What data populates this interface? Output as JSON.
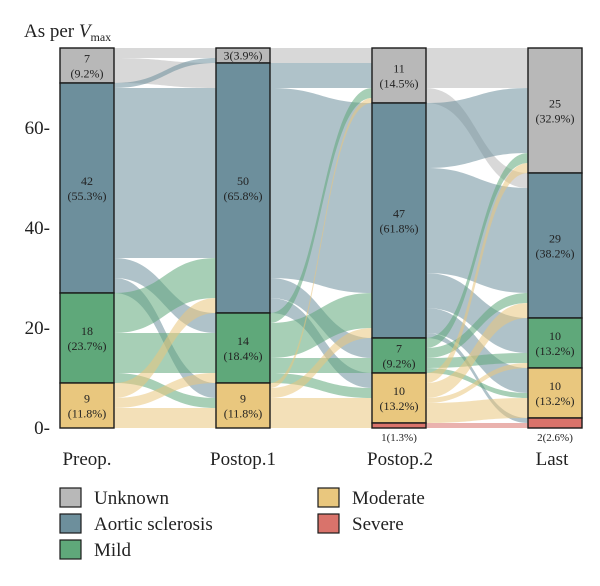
{
  "chart_data": {
    "type": "sankey",
    "ylabel_prefix": "As per ",
    "ylabel_v": "V",
    "ylabel_sub": "max",
    "y_ticks": [
      "0-",
      "20-",
      "40-",
      "60-"
    ],
    "y_tick_values": [
      0,
      20,
      40,
      60
    ],
    "total": 76,
    "categories": [
      "Preop.",
      "Postop.1",
      "Postop.2",
      "Last"
    ],
    "series": [
      {
        "key": "unknown",
        "name": "Unknown",
        "color": "#b8b8b8"
      },
      {
        "key": "aortic",
        "name": "Aortic sclerosis",
        "color": "#6d8f9c"
      },
      {
        "key": "mild",
        "name": "Mild",
        "color": "#5fa87a"
      },
      {
        "key": "moderate",
        "name": "Moderate",
        "color": "#e9c77e"
      },
      {
        "key": "severe",
        "name": "Severe",
        "color": "#d9736b"
      }
    ],
    "stages": [
      {
        "name": "Preop.",
        "segments": [
          {
            "key": "unknown",
            "value": 7,
            "count": "7",
            "pct": "(9.2%)"
          },
          {
            "key": "aortic",
            "value": 42,
            "count": "42",
            "pct": "(55.3%)"
          },
          {
            "key": "mild",
            "value": 18,
            "count": "18",
            "pct": "(23.7%)"
          },
          {
            "key": "moderate",
            "value": 9,
            "count": "9",
            "pct": "(11.8%)"
          }
        ]
      },
      {
        "name": "Postop.1",
        "segments": [
          {
            "key": "unknown",
            "value": 3,
            "single": "3(3.9%)"
          },
          {
            "key": "aortic",
            "value": 50,
            "count": "50",
            "pct": "(65.8%)"
          },
          {
            "key": "mild",
            "value": 14,
            "count": "14",
            "pct": "(18.4%)"
          },
          {
            "key": "moderate",
            "value": 9,
            "count": "9",
            "pct": "(11.8%)"
          }
        ]
      },
      {
        "name": "Postop.2",
        "segments": [
          {
            "key": "unknown",
            "value": 11,
            "count": "11",
            "pct": "(14.5%)"
          },
          {
            "key": "aortic",
            "value": 47,
            "count": "47",
            "pct": "(61.8%)"
          },
          {
            "key": "mild",
            "value": 7,
            "count": "7",
            "pct": "(9.2%)"
          },
          {
            "key": "moderate",
            "value": 10,
            "count": "10",
            "pct": "(13.2%)"
          },
          {
            "key": "severe",
            "value": 1,
            "below": "1(1.3%)"
          }
        ]
      },
      {
        "name": "Last",
        "segments": [
          {
            "key": "unknown",
            "value": 25,
            "count": "25",
            "pct": "(32.9%)"
          },
          {
            "key": "aortic",
            "value": 29,
            "count": "29",
            "pct": "(38.2%)"
          },
          {
            "key": "mild",
            "value": 10,
            "count": "10",
            "pct": "(13.2%)"
          },
          {
            "key": "moderate",
            "value": 10,
            "count": "10",
            "pct": "(13.2%)"
          },
          {
            "key": "severe",
            "value": 2,
            "below": "2(2.6%)"
          }
        ]
      }
    ],
    "flows": [
      [
        [
          "unknown",
          "unknown",
          2
        ],
        [
          "unknown",
          "aortic",
          5
        ],
        [
          "aortic",
          "unknown",
          1
        ],
        [
          "aortic",
          "aortic",
          34
        ],
        [
          "aortic",
          "mild",
          4
        ],
        [
          "aortic",
          "moderate",
          3
        ],
        [
          "mild",
          "aortic",
          8
        ],
        [
          "mild",
          "mild",
          8
        ],
        [
          "mild",
          "moderate",
          2
        ],
        [
          "moderate",
          "aortic",
          3
        ],
        [
          "moderate",
          "mild",
          2
        ],
        [
          "moderate",
          "moderate",
          4
        ]
      ],
      [
        [
          "unknown",
          "unknown",
          3
        ],
        [
          "aortic",
          "unknown",
          5
        ],
        [
          "aortic",
          "aortic",
          38
        ],
        [
          "aortic",
          "mild",
          4
        ],
        [
          "aortic",
          "moderate",
          3
        ],
        [
          "mild",
          "unknown",
          2
        ],
        [
          "mild",
          "aortic",
          7
        ],
        [
          "mild",
          "mild",
          3
        ],
        [
          "mild",
          "moderate",
          2
        ],
        [
          "moderate",
          "unknown",
          1
        ],
        [
          "moderate",
          "aortic",
          2
        ],
        [
          "moderate",
          "moderate",
          5
        ],
        [
          "moderate",
          "severe",
          1
        ]
      ],
      [
        [
          "unknown",
          "unknown",
          8
        ],
        [
          "unknown",
          "aortic",
          3
        ],
        [
          "aortic",
          "unknown",
          13
        ],
        [
          "aortic",
          "aortic",
          21
        ],
        [
          "aortic",
          "mild",
          7
        ],
        [
          "aortic",
          "moderate",
          5
        ],
        [
          "aortic",
          "severe",
          1
        ],
        [
          "mild",
          "unknown",
          2
        ],
        [
          "mild",
          "aortic",
          2
        ],
        [
          "mild",
          "mild",
          2
        ],
        [
          "mild",
          "moderate",
          1
        ],
        [
          "moderate",
          "unknown",
          2
        ],
        [
          "moderate",
          "aortic",
          3
        ],
        [
          "moderate",
          "mild",
          1
        ],
        [
          "moderate",
          "moderate",
          4
        ],
        [
          "severe",
          "severe",
          1
        ]
      ]
    ]
  }
}
